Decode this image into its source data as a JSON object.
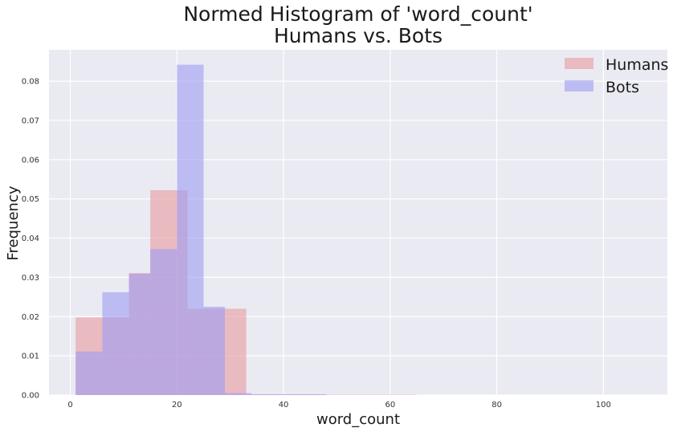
{
  "chart_data": {
    "type": "bar",
    "title_lines": [
      "Normed Histogram of 'word_count'",
      "Humans vs. Bots"
    ],
    "xlabel": "word_count",
    "ylabel": "Frequency",
    "xlim": [
      -4,
      112
    ],
    "ylim": [
      0,
      0.088
    ],
    "xticks": [
      0,
      20,
      40,
      60,
      80,
      100
    ],
    "yticks": [
      0.0,
      0.01,
      0.02,
      0.03,
      0.04,
      0.05,
      0.06,
      0.07,
      0.08
    ],
    "ytick_labels": [
      "0.00",
      "0.01",
      "0.02",
      "0.03",
      "0.04",
      "0.05",
      "0.06",
      "0.07",
      "0.08"
    ],
    "grid": true,
    "legend_position": "top-right",
    "series": [
      {
        "name": "Humans",
        "color": "#e8a0a4",
        "opacity": 0.65,
        "bins": [
          {
            "x0": 1,
            "x1": 6,
            "value": 0.0198
          },
          {
            "x0": 6,
            "x1": 11,
            "value": 0.0198
          },
          {
            "x0": 11,
            "x1": 15,
            "value": 0.0311
          },
          {
            "x0": 15,
            "x1": 22,
            "value": 0.0522
          },
          {
            "x0": 22,
            "x1": 29,
            "value": 0.022
          },
          {
            "x0": 29,
            "x1": 33,
            "value": 0.022
          },
          {
            "x0": 33,
            "x1": 47,
            "value": 0.0002
          },
          {
            "x0": 47,
            "x1": 65,
            "value": 0.0001
          }
        ]
      },
      {
        "name": "Bots",
        "color": "#9c9cf4",
        "opacity": 0.6,
        "bins": [
          {
            "x0": 1,
            "x1": 6,
            "value": 0.0111
          },
          {
            "x0": 6,
            "x1": 11,
            "value": 0.0262
          },
          {
            "x0": 11,
            "x1": 15,
            "value": 0.0309
          },
          {
            "x0": 15,
            "x1": 20,
            "value": 0.0372
          },
          {
            "x0": 20,
            "x1": 25,
            "value": 0.0842
          },
          {
            "x0": 25,
            "x1": 29,
            "value": 0.0225
          },
          {
            "x0": 29,
            "x1": 34,
            "value": 0.0005
          },
          {
            "x0": 34,
            "x1": 48,
            "value": 0.0002
          }
        ]
      }
    ]
  }
}
